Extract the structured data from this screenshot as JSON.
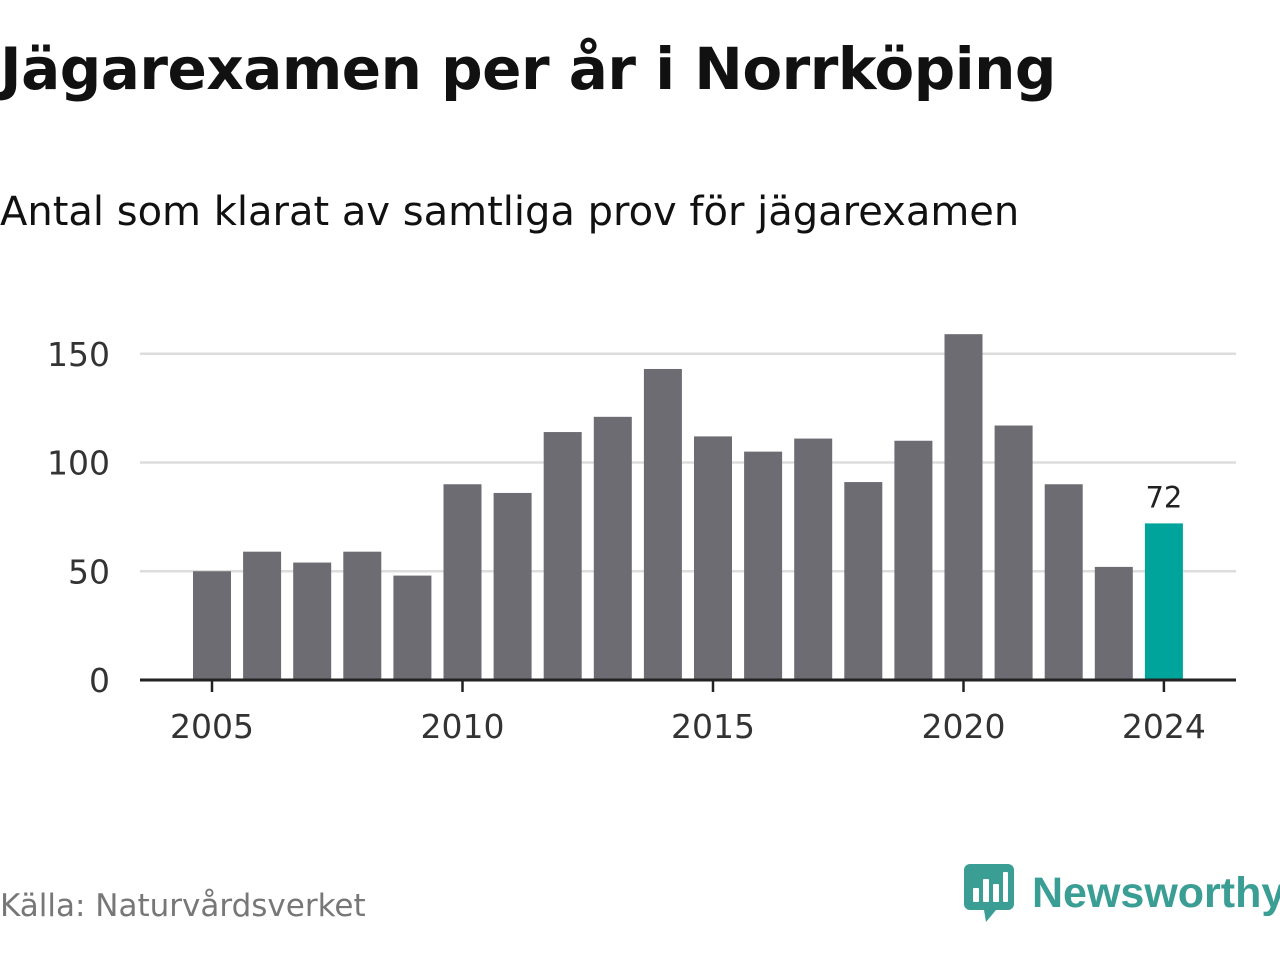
{
  "title": "Jägarexamen per år i Norrköping",
  "subtitle": "Antal som klarat av samtliga prov för jägarexamen",
  "source": "Källa: Naturvårdsverket",
  "brand": {
    "name": "Newsworthy",
    "icon": "newsworthy-logo-icon",
    "color": "#3a9e95"
  },
  "colors": {
    "bar": "#6d6c72",
    "highlight": "#00a49b",
    "grid": "#dddddd",
    "axis": "#222222"
  },
  "chart_data": {
    "type": "bar",
    "title": "Jägarexamen per år i Norrköping",
    "subtitle": "Antal som klarat av samtliga prov för jägarexamen",
    "categories": [
      2005,
      2006,
      2007,
      2008,
      2009,
      2010,
      2011,
      2012,
      2013,
      2014,
      2015,
      2016,
      2017,
      2018,
      2019,
      2020,
      2021,
      2022,
      2023,
      2024
    ],
    "values": [
      50,
      59,
      54,
      59,
      48,
      90,
      86,
      114,
      121,
      143,
      112,
      105,
      111,
      91,
      110,
      159,
      117,
      90,
      52,
      72
    ],
    "highlight_index": 19,
    "data_labels": [
      {
        "index": 19,
        "text": "72"
      }
    ],
    "x_ticks": [
      "2005",
      "2010",
      "2015",
      "2020",
      "2024"
    ],
    "y_ticks": [
      "0",
      "50",
      "100",
      "150"
    ],
    "ylim": [
      0,
      160
    ],
    "grid": true,
    "xlabel": "",
    "ylabel": ""
  }
}
